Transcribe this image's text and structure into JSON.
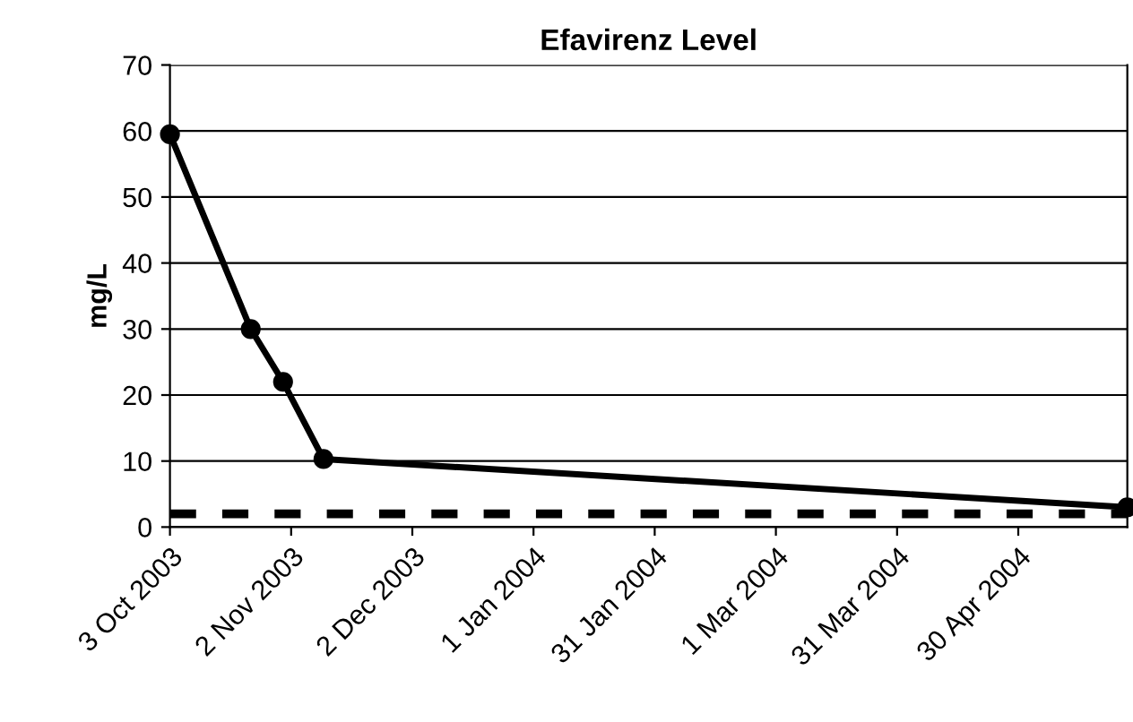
{
  "chart_data": {
    "type": "line",
    "title": "Efavirenz Level",
    "ylabel": "mg/L",
    "x": [
      "2003-10-03",
      "2003-10-23",
      "2003-10-31",
      "2003-11-10",
      "2004-05-27"
    ],
    "series": [
      {
        "color": "#000000",
        "values": [
          59.5,
          30,
          22,
          10.3,
          3
        ]
      }
    ],
    "xlim": [
      "2003-10-03",
      "2004-05-27"
    ],
    "xticks": [
      {
        "value": "2003-10-03",
        "label": "3 Oct 2003"
      },
      {
        "value": "2003-11-02",
        "label": "2 Nov 2003"
      },
      {
        "value": "2003-12-02",
        "label": "2 Dec 2003"
      },
      {
        "value": "2004-01-01",
        "label": "1 Jan 2004"
      },
      {
        "value": "2004-01-31",
        "label": "31 Jan 2004"
      },
      {
        "value": "2004-03-01",
        "label": "1 Mar 2004"
      },
      {
        "value": "2004-03-31",
        "label": "31 Mar 2004"
      },
      {
        "value": "2004-04-30",
        "label": "30 Apr 2004"
      }
    ],
    "ylim": [
      0,
      70
    ],
    "yticks": [
      0,
      10,
      20,
      30,
      40,
      50,
      60,
      70
    ],
    "ref_lines": [
      {
        "axis": "y",
        "value": 2,
        "color": "#000000",
        "line_style": "dashed"
      }
    ],
    "grid": "y",
    "marker": "circle",
    "line_style": "solid"
  }
}
